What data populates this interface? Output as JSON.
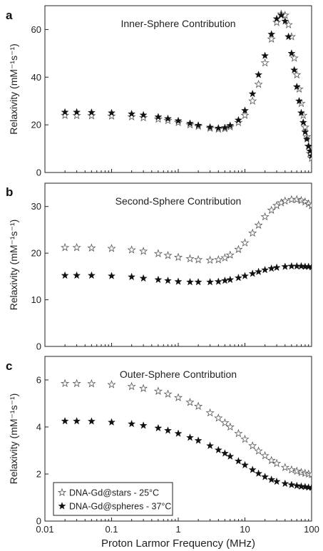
{
  "chart_data": [
    {
      "type": "scatter",
      "panel_letter": "a",
      "title": "Inner-Sphere Contribution",
      "ylabel": "Relaxivity (mM⁻¹s⁻¹)",
      "xlabel": "",
      "xscale": "log",
      "xlim": [
        0.01,
        100
      ],
      "ylim": [
        0,
        70
      ],
      "yticks": [
        0,
        20,
        40,
        60
      ],
      "series": [
        {
          "name": "DNA-Gd@stars - 25°C",
          "marker": "open-star",
          "points": [
            [
              0.02,
              24.0
            ],
            [
              0.03,
              23.9
            ],
            [
              0.05,
              23.8
            ],
            [
              0.1,
              23.7
            ],
            [
              0.2,
              23.4
            ],
            [
              0.3,
              23.0
            ],
            [
              0.5,
              22.4
            ],
            [
              0.7,
              21.8
            ],
            [
              1,
              21.0
            ],
            [
              1.5,
              20.0
            ],
            [
              2,
              19.4
            ],
            [
              3,
              18.6
            ],
            [
              4,
              18.2
            ],
            [
              5,
              18.4
            ],
            [
              6,
              19.2
            ],
            [
              8,
              21.0
            ],
            [
              10,
              24.0
            ],
            [
              13,
              30.0
            ],
            [
              16,
              37.0
            ],
            [
              20,
              46.0
            ],
            [
              25,
              56.0
            ],
            [
              30,
              63.0
            ],
            [
              35,
              66.5
            ],
            [
              40,
              66.0
            ],
            [
              45,
              62.0
            ],
            [
              50,
              57.0
            ],
            [
              55,
              48.0
            ],
            [
              60,
              41.0
            ],
            [
              65,
              35.0
            ],
            [
              70,
              29.0
            ],
            [
              75,
              24.0
            ],
            [
              80,
              19.0
            ],
            [
              85,
              15.0
            ],
            [
              90,
              11.0
            ],
            [
              95,
              8.0
            ],
            [
              100,
              6.0
            ]
          ]
        },
        {
          "name": "DNA-Gd@spheres - 37°C",
          "marker": "filled-star",
          "points": [
            [
              0.02,
              25.3
            ],
            [
              0.03,
              25.3
            ],
            [
              0.05,
              25.2
            ],
            [
              0.1,
              25.0
            ],
            [
              0.2,
              24.6
            ],
            [
              0.3,
              24.1
            ],
            [
              0.5,
              23.3
            ],
            [
              0.7,
              22.6
            ],
            [
              1,
              21.7
            ],
            [
              1.5,
              20.6
            ],
            [
              2,
              19.8
            ],
            [
              3,
              19.0
            ],
            [
              4,
              18.6
            ],
            [
              5,
              18.8
            ],
            [
              6,
              19.7
            ],
            [
              8,
              22.0
            ],
            [
              10,
              26.0
            ],
            [
              13,
              33.0
            ],
            [
              16,
              41.0
            ],
            [
              20,
              49.0
            ],
            [
              25,
              58.0
            ],
            [
              30,
              64.5
            ],
            [
              35,
              66.0
            ],
            [
              40,
              63.5
            ],
            [
              45,
              57.0
            ],
            [
              50,
              50.0
            ],
            [
              55,
              43.0
            ],
            [
              60,
              36.0
            ],
            [
              65,
              30.0
            ],
            [
              70,
              25.0
            ],
            [
              75,
              21.0
            ],
            [
              80,
              17.0
            ],
            [
              85,
              14.0
            ],
            [
              90,
              11.0
            ],
            [
              95,
              9.0
            ],
            [
              100,
              7.0
            ]
          ]
        }
      ]
    },
    {
      "type": "scatter",
      "panel_letter": "b",
      "title": "Second-Sphere Contribution",
      "ylabel": "Relaxivity (mM⁻¹s⁻¹)",
      "xlabel": "",
      "xscale": "log",
      "xlim": [
        0.01,
        100
      ],
      "ylim": [
        0,
        35
      ],
      "yticks": [
        0,
        10,
        20,
        30
      ],
      "series": [
        {
          "name": "DNA-Gd@stars - 25°C",
          "marker": "open-star",
          "points": [
            [
              0.02,
              21.2
            ],
            [
              0.03,
              21.2
            ],
            [
              0.05,
              21.1
            ],
            [
              0.1,
              21.0
            ],
            [
              0.2,
              20.7
            ],
            [
              0.3,
              20.4
            ],
            [
              0.5,
              19.9
            ],
            [
              0.7,
              19.5
            ],
            [
              1,
              19.1
            ],
            [
              1.5,
              18.8
            ],
            [
              2,
              18.6
            ],
            [
              3,
              18.5
            ],
            [
              4,
              18.6
            ],
            [
              5,
              19.0
            ],
            [
              6,
              19.6
            ],
            [
              8,
              20.8
            ],
            [
              10,
              22.2
            ],
            [
              13,
              24.3
            ],
            [
              16,
              26.0
            ],
            [
              20,
              27.8
            ],
            [
              25,
              29.2
            ],
            [
              30,
              30.2
            ],
            [
              35,
              30.8
            ],
            [
              40,
              31.2
            ],
            [
              50,
              31.5
            ],
            [
              60,
              31.5
            ],
            [
              70,
              31.3
            ],
            [
              80,
              31.0
            ],
            [
              90,
              30.6
            ],
            [
              100,
              30.2
            ]
          ]
        },
        {
          "name": "DNA-Gd@spheres - 37°C",
          "marker": "filled-star",
          "points": [
            [
              0.02,
              15.2
            ],
            [
              0.03,
              15.2
            ],
            [
              0.05,
              15.2
            ],
            [
              0.1,
              15.1
            ],
            [
              0.2,
              14.9
            ],
            [
              0.3,
              14.6
            ],
            [
              0.5,
              14.3
            ],
            [
              0.7,
              14.1
            ],
            [
              1,
              13.9
            ],
            [
              1.5,
              13.8
            ],
            [
              2,
              13.8
            ],
            [
              3,
              13.8
            ],
            [
              4,
              13.9
            ],
            [
              5,
              14.1
            ],
            [
              6,
              14.3
            ],
            [
              8,
              14.7
            ],
            [
              10,
              15.1
            ],
            [
              13,
              15.6
            ],
            [
              16,
              16.0
            ],
            [
              20,
              16.4
            ],
            [
              25,
              16.7
            ],
            [
              30,
              16.9
            ],
            [
              40,
              17.1
            ],
            [
              50,
              17.2
            ],
            [
              60,
              17.2
            ],
            [
              70,
              17.2
            ],
            [
              80,
              17.1
            ],
            [
              90,
              17.1
            ],
            [
              100,
              17.0
            ]
          ]
        }
      ]
    },
    {
      "type": "scatter",
      "panel_letter": "c",
      "title": "Outer-Sphere Contribution",
      "ylabel": "Relaxivity (mM⁻¹s⁻¹)",
      "xlabel": "Proton Larmor Frequency (MHz)",
      "xscale": "log",
      "xlim": [
        0.01,
        100
      ],
      "ylim": [
        0,
        7
      ],
      "yticks": [
        0,
        2,
        4,
        6
      ],
      "xticks": [
        0.01,
        0.1,
        1,
        10,
        100
      ],
      "xtick_labels": [
        "0.01",
        "0.1",
        "1",
        "10",
        "100"
      ],
      "legend_position": "bottom-left",
      "series": [
        {
          "name": "DNA-Gd@stars - 25°C",
          "marker": "open-star",
          "points": [
            [
              0.02,
              5.85
            ],
            [
              0.03,
              5.85
            ],
            [
              0.05,
              5.84
            ],
            [
              0.1,
              5.8
            ],
            [
              0.2,
              5.72
            ],
            [
              0.3,
              5.64
            ],
            [
              0.5,
              5.52
            ],
            [
              0.7,
              5.4
            ],
            [
              1,
              5.25
            ],
            [
              1.5,
              5.05
            ],
            [
              2,
              4.88
            ],
            [
              3,
              4.6
            ],
            [
              4,
              4.38
            ],
            [
              5,
              4.18
            ],
            [
              6,
              4.0
            ],
            [
              8,
              3.72
            ],
            [
              10,
              3.48
            ],
            [
              13,
              3.2
            ],
            [
              16,
              2.98
            ],
            [
              20,
              2.78
            ],
            [
              25,
              2.58
            ],
            [
              30,
              2.45
            ],
            [
              40,
              2.28
            ],
            [
              50,
              2.18
            ],
            [
              60,
              2.12
            ],
            [
              70,
              2.07
            ],
            [
              80,
              2.03
            ],
            [
              90,
              2.0
            ],
            [
              100,
              1.98
            ]
          ]
        },
        {
          "name": "DNA-Gd@spheres - 37°C",
          "marker": "filled-star",
          "points": [
            [
              0.02,
              4.25
            ],
            [
              0.03,
              4.25
            ],
            [
              0.05,
              4.24
            ],
            [
              0.1,
              4.2
            ],
            [
              0.2,
              4.13
            ],
            [
              0.3,
              4.06
            ],
            [
              0.5,
              3.95
            ],
            [
              0.7,
              3.85
            ],
            [
              1,
              3.72
            ],
            [
              1.5,
              3.55
            ],
            [
              2,
              3.42
            ],
            [
              3,
              3.2
            ],
            [
              4,
              3.02
            ],
            [
              5,
              2.88
            ],
            [
              6,
              2.75
            ],
            [
              8,
              2.55
            ],
            [
              10,
              2.38
            ],
            [
              13,
              2.18
            ],
            [
              16,
              2.02
            ],
            [
              20,
              1.88
            ],
            [
              25,
              1.76
            ],
            [
              30,
              1.68
            ],
            [
              40,
              1.59
            ],
            [
              50,
              1.54
            ],
            [
              60,
              1.5
            ],
            [
              70,
              1.47
            ],
            [
              80,
              1.45
            ],
            [
              90,
              1.43
            ],
            [
              100,
              1.42
            ]
          ]
        }
      ]
    }
  ]
}
